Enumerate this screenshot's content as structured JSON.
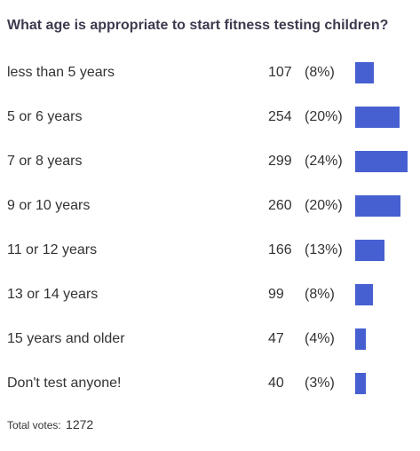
{
  "chart_data": {
    "type": "bar",
    "orientation": "horizontal",
    "title": "What age is appropriate to start fitness testing children?",
    "categories": [
      "less than 5 years",
      "5 or 6 years",
      "7 or 8 years",
      "9 or 10 years",
      "11 or 12 years",
      "13 or 14 years",
      "15 years and older",
      "Don't test anyone!"
    ],
    "values": [
      107,
      254,
      299,
      260,
      166,
      99,
      47,
      40
    ],
    "percent_labels": [
      "(8%)",
      "(20%)",
      "(24%)",
      "(20%)",
      "(13%)",
      "(8%)",
      "(4%)",
      "(3%)"
    ],
    "bar_color": "#4760d1"
  },
  "footer": {
    "total_label": "Total votes:",
    "total_value": "1272"
  }
}
